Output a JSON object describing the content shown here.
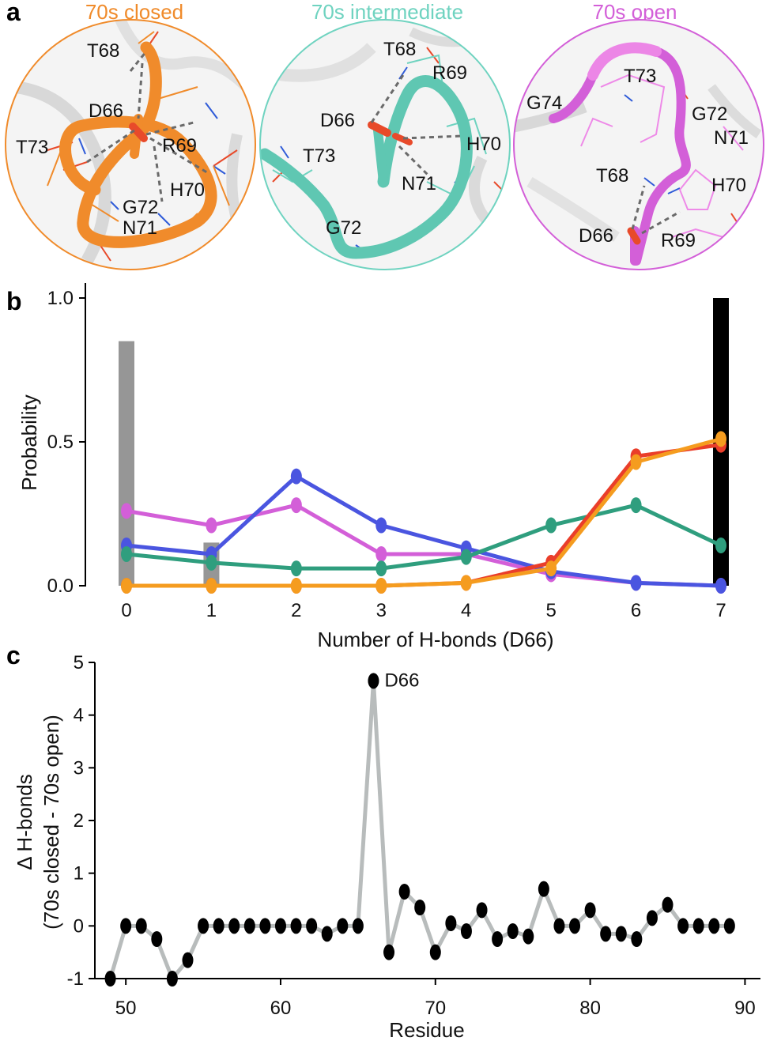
{
  "panel_a": {
    "letter": "a",
    "states": [
      {
        "title": "70s closed",
        "color": "#f08b2b",
        "labels": [
          "T68",
          "D66",
          "T73",
          "R69",
          "H70",
          "G72",
          "N71"
        ]
      },
      {
        "title": "70s intermediate",
        "color": "#6fd3c0",
        "labels": [
          "T68",
          "R69",
          "D66",
          "H70",
          "T73",
          "N71",
          "G72"
        ]
      },
      {
        "title": "70s open",
        "color": "#d35fd8",
        "labels": [
          "T73",
          "G74",
          "G72",
          "N71",
          "T68",
          "H70",
          "D66",
          "R69"
        ]
      }
    ]
  },
  "chart_data": [
    {
      "panel": "b",
      "type": "line",
      "xlabel": "Number of H-bonds (D66)",
      "ylabel": "Probability",
      "xlim": [
        0,
        7
      ],
      "ylim": [
        0,
        1.0
      ],
      "x": [
        0,
        1,
        2,
        3,
        4,
        5,
        6,
        7
      ],
      "x_tick_labels": [
        "0",
        "1",
        "2",
        "3",
        "4",
        "5",
        "6",
        "7"
      ],
      "y_ticks": [
        0,
        0.5,
        1.0
      ],
      "y_tick_labels": [
        "0.0",
        "0.5",
        "1.0"
      ],
      "bars": [
        {
          "x": 0,
          "value": 0.85,
          "color": "#969696"
        },
        {
          "x": 1,
          "value": 0.15,
          "color": "#969696"
        },
        {
          "x": 7,
          "value": 1.0,
          "color": "#000000"
        }
      ],
      "series": [
        {
          "name": "magenta",
          "color": "#d35fd8",
          "values": [
            0.26,
            0.21,
            0.28,
            0.11,
            0.11,
            0.04,
            0.01,
            0.0
          ]
        },
        {
          "name": "blue",
          "color": "#4a55e0",
          "values": [
            0.14,
            0.11,
            0.38,
            0.21,
            0.13,
            0.05,
            0.01,
            0.0
          ]
        },
        {
          "name": "teal",
          "color": "#2f9e7e",
          "values": [
            0.11,
            0.08,
            0.06,
            0.06,
            0.1,
            0.21,
            0.28,
            0.14
          ]
        },
        {
          "name": "red",
          "color": "#ea3e2a",
          "values": [
            0.0,
            0.0,
            0.0,
            0.0,
            0.01,
            0.08,
            0.45,
            0.49
          ]
        },
        {
          "name": "orange",
          "color": "#f59c1f",
          "values": [
            0.0,
            0.0,
            0.0,
            0.0,
            0.01,
            0.06,
            0.43,
            0.51
          ]
        }
      ]
    },
    {
      "panel": "c",
      "type": "line",
      "xlabel": "Residue",
      "ylabel": "Δ H-bonds",
      "ylabel2": "(70s closed - 70s open)",
      "xlim": [
        48,
        91
      ],
      "ylim": [
        -1,
        5
      ],
      "x_ticks": [
        50,
        60,
        70,
        80,
        90
      ],
      "x_tick_labels": [
        "50",
        "60",
        "70",
        "80",
        "90"
      ],
      "y_ticks": [
        -1,
        0,
        1,
        2,
        3,
        4,
        5
      ],
      "y_tick_labels": [
        "-1",
        "0",
        "1",
        "2",
        "3",
        "4",
        "5"
      ],
      "line_color": "#b8bcbc",
      "marker_color": "#000000",
      "annotation": {
        "text": "D66",
        "x": 66,
        "y": 4.65
      },
      "x": [
        49,
        50,
        51,
        52,
        53,
        54,
        55,
        56,
        57,
        58,
        59,
        60,
        61,
        62,
        63,
        64,
        65,
        66,
        67,
        68,
        69,
        70,
        71,
        72,
        73,
        74,
        75,
        76,
        77,
        78,
        79,
        80,
        81,
        82,
        83,
        84,
        85,
        86,
        87,
        88,
        89
      ],
      "values": [
        -1,
        0,
        0,
        -0.25,
        -1,
        -0.65,
        0,
        0,
        0,
        0,
        0,
        0,
        0,
        0,
        -0.15,
        0,
        0,
        4.65,
        -0.5,
        0.65,
        0.35,
        -0.5,
        0.05,
        -0.1,
        0.3,
        -0.25,
        -0.1,
        -0.2,
        0.7,
        0,
        0,
        0.3,
        -0.15,
        -0.15,
        -0.25,
        0.15,
        0.4,
        0,
        0,
        0,
        0
      ]
    }
  ]
}
